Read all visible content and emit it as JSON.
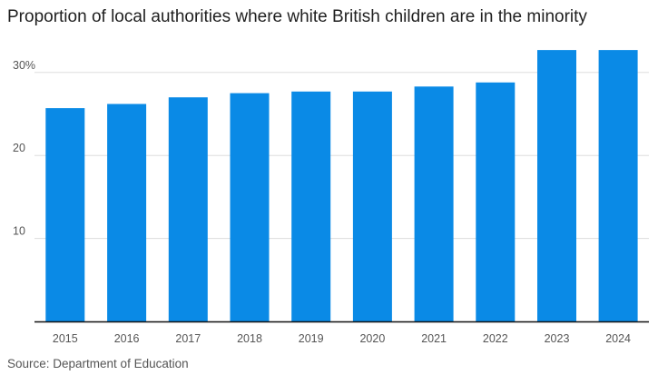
{
  "chart_data": {
    "type": "bar",
    "title": "Proportion of local authorities where white British children are in the minority",
    "source": "Source: Department of Education",
    "categories": [
      "2015",
      "2016",
      "2017",
      "2018",
      "2019",
      "2020",
      "2021",
      "2022",
      "2023",
      "2024"
    ],
    "values": [
      25.7,
      26.2,
      27.0,
      27.5,
      27.7,
      27.7,
      28.3,
      28.8,
      32.7,
      32.7
    ],
    "ylim": [
      0,
      35
    ],
    "yticks": [
      {
        "value": 10,
        "label": "10"
      },
      {
        "value": 20,
        "label": "20"
      },
      {
        "value": 30,
        "label": "30%"
      }
    ],
    "xlabel": "",
    "ylabel": "",
    "grid": true,
    "bar_color": "#0A8AE6",
    "grid_color": "#dddddd",
    "axis_color": "#111111"
  }
}
